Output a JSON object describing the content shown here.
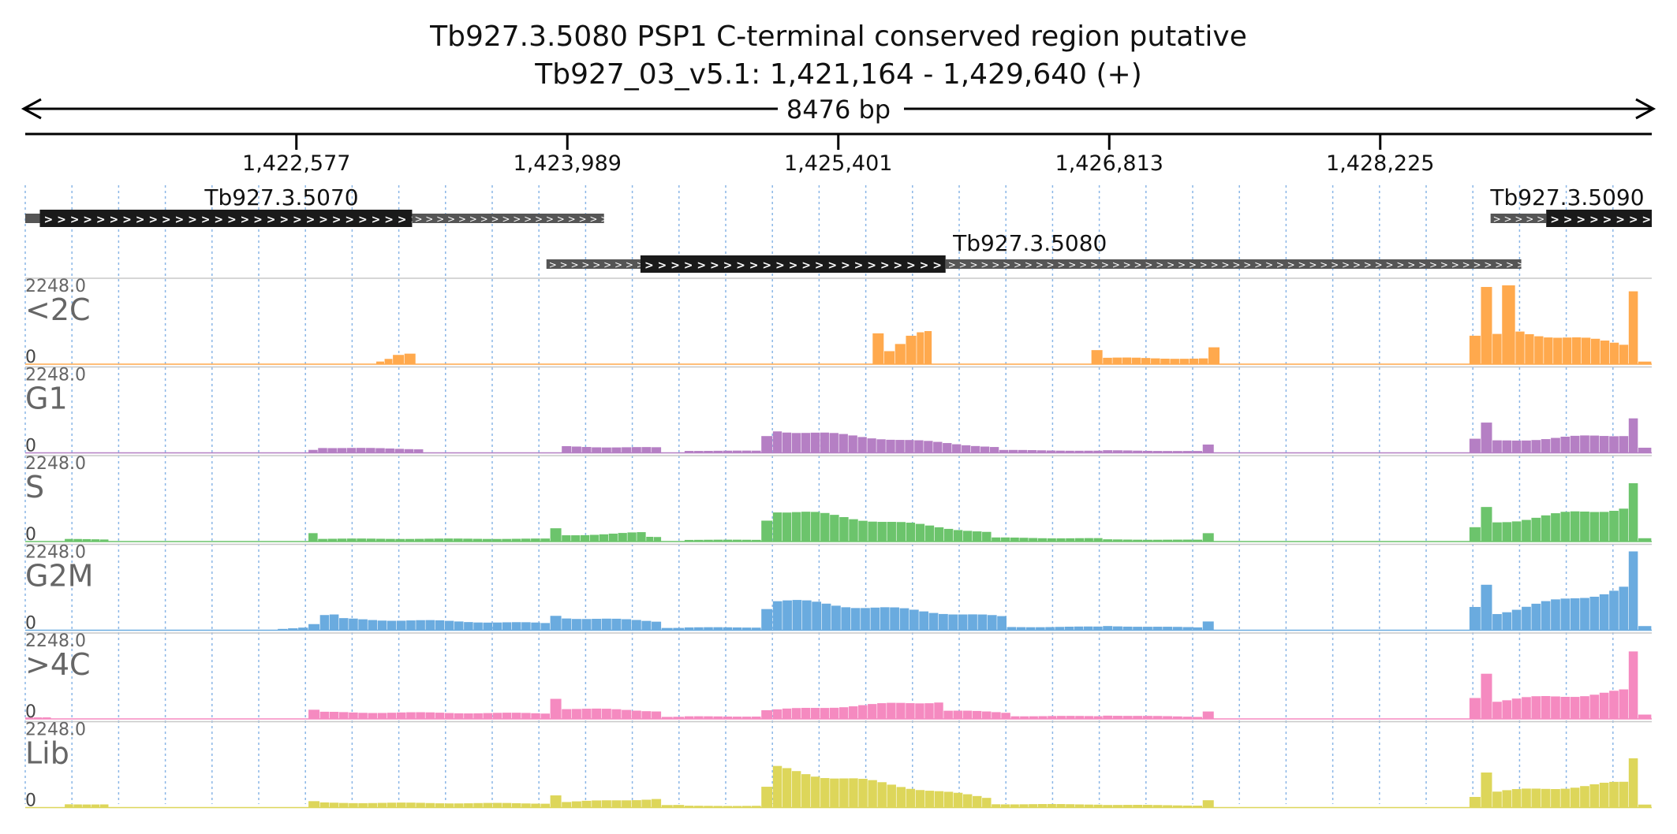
{
  "header": {
    "title": "Tb927.3.5080  PSP1 C-terminal conserved region  putative",
    "subtitle": "Tb927_03_v5.1: 1,421,164 - 1,429,640 (+)",
    "span_label": "8476 bp"
  },
  "chart_data": {
    "type": "area",
    "region": {
      "chromosome": "Tb927_03_v5.1",
      "start": 1421164,
      "end": 1429640,
      "strand": "+"
    },
    "x_ticks": [
      {
        "pos": 1422577,
        "label": "1,422,577"
      },
      {
        "pos": 1423989,
        "label": "1,423,989"
      },
      {
        "pos": 1425401,
        "label": "1,425,401"
      },
      {
        "pos": 1426813,
        "label": "1,426,813"
      },
      {
        "pos": 1428225,
        "label": "1,428,225"
      }
    ],
    "genes": [
      {
        "name": "Tb927.3.5070",
        "row": 0,
        "utr5_start": 1421164,
        "cds_start": 1421240,
        "cds_end": 1423180,
        "utr3_end": 1424180,
        "label_pos": 1422500
      },
      {
        "name": "Tb927.3.5080",
        "row": 1,
        "utr5_start": 1423880,
        "cds_start": 1424370,
        "cds_end": 1425960,
        "utr3_end": 1428960,
        "label_pos": 1426400
      },
      {
        "name": "Tb927.3.5090",
        "row": 0,
        "utr5_start": 1428800,
        "cds_start": 1429090,
        "cds_end": 1429640,
        "utr3_end": 1429640,
        "label_pos": 1429200
      }
    ],
    "ymax_label": "2248.0",
    "ymin_label": "0",
    "ylim": [
      0,
      2248
    ],
    "grid": true,
    "bin_size": 50,
    "x_start": 1421164,
    "series": [
      {
        "name": "<2C",
        "color": "#FFA94D",
        "profile": [
          [
            1422950,
            1423080,
            0,
            140
          ],
          [
            1423080,
            1423200,
            250,
            300
          ],
          [
            1425580,
            1425640,
            900,
            900
          ],
          [
            1425640,
            1425810,
            400,
            850
          ],
          [
            1425810,
            1425890,
            900,
            900
          ],
          [
            1426720,
            1426780,
            420,
            420
          ],
          [
            1426780,
            1427330,
            180,
            160
          ],
          [
            1427330,
            1427390,
            450,
            450
          ],
          [
            1428690,
            1428750,
            820,
            820
          ],
          [
            1428750,
            1428810,
            2100,
            2100
          ],
          [
            1428810,
            1428860,
            800,
            800
          ],
          [
            1428860,
            1428930,
            2200,
            2200
          ],
          [
            1428930,
            1429520,
            920,
            580
          ],
          [
            1429520,
            1429570,
            2248,
            2248
          ],
          [
            1429570,
            1429640,
            80,
            280
          ]
        ]
      },
      {
        "name": "G1",
        "color": "#B57FC4",
        "profile": [
          [
            1422640,
            1422690,
            90,
            90
          ],
          [
            1422690,
            1423240,
            150,
            110
          ],
          [
            1423960,
            1424480,
            180,
            150
          ],
          [
            1424600,
            1425000,
            60,
            60
          ],
          [
            1425000,
            1425060,
            480,
            480
          ],
          [
            1425060,
            1426240,
            650,
            170
          ],
          [
            1426240,
            1426780,
            80,
            60
          ],
          [
            1426780,
            1427300,
            70,
            50
          ],
          [
            1427300,
            1427360,
            220,
            220
          ],
          [
            1428690,
            1428750,
            380,
            380
          ],
          [
            1428750,
            1428810,
            800,
            800
          ],
          [
            1428810,
            1429520,
            340,
            520
          ],
          [
            1429520,
            1429570,
            1050,
            1050
          ],
          [
            1429570,
            1429640,
            150,
            180
          ]
        ]
      },
      {
        "name": "S",
        "color": "#6CC46C",
        "profile": [
          [
            1421370,
            1421600,
            70,
            60
          ],
          [
            1422640,
            1422690,
            260,
            260
          ],
          [
            1422690,
            1423900,
            80,
            80
          ],
          [
            1423900,
            1423960,
            360,
            360
          ],
          [
            1423960,
            1424400,
            180,
            250
          ],
          [
            1424400,
            1424480,
            130,
            130
          ],
          [
            1424600,
            1425000,
            50,
            50
          ],
          [
            1425000,
            1425060,
            640,
            640
          ],
          [
            1425060,
            1426200,
            900,
            270
          ],
          [
            1426200,
            1426780,
            110,
            90
          ],
          [
            1426780,
            1427300,
            60,
            50
          ],
          [
            1427300,
            1427360,
            230,
            230
          ],
          [
            1428690,
            1428750,
            380,
            380
          ],
          [
            1428750,
            1428810,
            950,
            950
          ],
          [
            1428810,
            1429520,
            560,
            980
          ],
          [
            1429520,
            1429570,
            1650,
            1650
          ],
          [
            1429570,
            1429640,
            90,
            250
          ]
        ]
      },
      {
        "name": "G2M",
        "color": "#6AABDF",
        "profile": [
          [
            1422480,
            1422640,
            40,
            80
          ],
          [
            1422640,
            1422700,
            180,
            180
          ],
          [
            1422700,
            1422800,
            420,
            420
          ],
          [
            1422800,
            1423900,
            320,
            200
          ],
          [
            1423900,
            1423960,
            420,
            420
          ],
          [
            1423960,
            1424480,
            360,
            260
          ],
          [
            1424480,
            1424600,
            70,
            70
          ],
          [
            1424600,
            1425000,
            80,
            80
          ],
          [
            1425000,
            1425060,
            650,
            650
          ],
          [
            1425060,
            1426280,
            850,
            380
          ],
          [
            1426280,
            1426780,
            90,
            100
          ],
          [
            1426780,
            1427300,
            120,
            80
          ],
          [
            1427300,
            1427360,
            260,
            260
          ],
          [
            1428690,
            1428750,
            650,
            650
          ],
          [
            1428750,
            1428810,
            1350,
            1350
          ],
          [
            1428810,
            1429520,
            500,
            1200
          ],
          [
            1429520,
            1429570,
            2200,
            2200
          ],
          [
            1429570,
            1429640,
            110,
            220
          ]
        ]
      },
      {
        "name": ">4C",
        "color": "#F58AC0",
        "profile": [
          [
            1421164,
            1421300,
            40,
            40
          ],
          [
            1422640,
            1422700,
            250,
            250
          ],
          [
            1422700,
            1423900,
            190,
            160
          ],
          [
            1423900,
            1423960,
            620,
            620
          ],
          [
            1423960,
            1424480,
            300,
            230
          ],
          [
            1424480,
            1424600,
            60,
            60
          ],
          [
            1424600,
            1425000,
            70,
            70
          ],
          [
            1425000,
            1425060,
            250,
            250
          ],
          [
            1425060,
            1425950,
            260,
            500
          ],
          [
            1425950,
            1426300,
            240,
            180
          ],
          [
            1426300,
            1426780,
            80,
            80
          ],
          [
            1426780,
            1427300,
            100,
            60
          ],
          [
            1427300,
            1427360,
            230,
            230
          ],
          [
            1428690,
            1428750,
            630,
            630
          ],
          [
            1428750,
            1428810,
            1400,
            1400
          ],
          [
            1428810,
            1429520,
            520,
            780
          ],
          [
            1429520,
            1429570,
            1800,
            1800
          ],
          [
            1429570,
            1429640,
            120,
            230
          ]
        ]
      },
      {
        "name": "Lib",
        "color": "#DDD65A",
        "profile": [
          [
            1421370,
            1421600,
            100,
            90
          ],
          [
            1422640,
            1422700,
            170,
            170
          ],
          [
            1422700,
            1423900,
            140,
            120
          ],
          [
            1423900,
            1423960,
            370,
            370
          ],
          [
            1423960,
            1424480,
            160,
            250
          ],
          [
            1424480,
            1424600,
            70,
            70
          ],
          [
            1424600,
            1425000,
            50,
            50
          ],
          [
            1425000,
            1425060,
            560,
            560
          ],
          [
            1425060,
            1426200,
            1100,
            280
          ],
          [
            1426200,
            1426780,
            100,
            90
          ],
          [
            1426780,
            1427300,
            80,
            60
          ],
          [
            1427300,
            1427360,
            220,
            220
          ],
          [
            1428690,
            1428750,
            330,
            330
          ],
          [
            1428750,
            1428810,
            1050,
            1050
          ],
          [
            1428810,
            1429520,
            450,
            700
          ],
          [
            1429520,
            1429570,
            1400,
            1400
          ],
          [
            1429570,
            1429640,
            90,
            220
          ]
        ]
      }
    ]
  }
}
